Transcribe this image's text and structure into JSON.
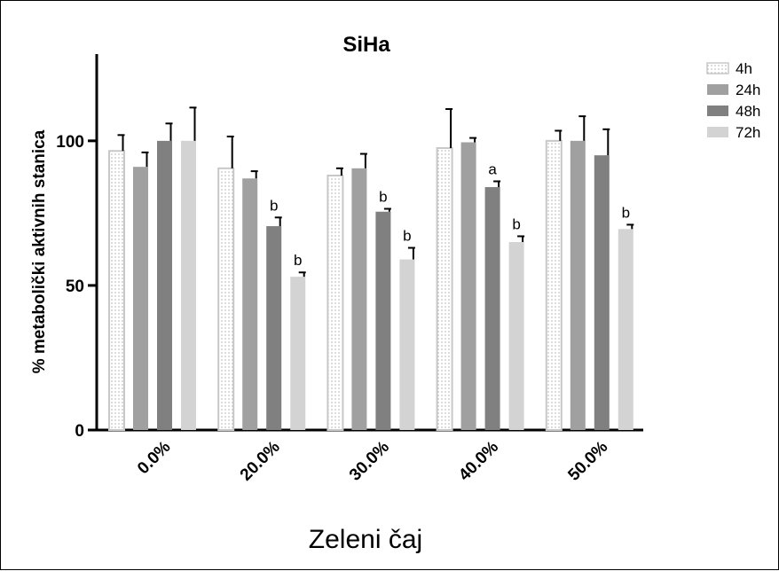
{
  "chart_data": {
    "type": "bar",
    "title": "SiHa",
    "xlabel": "Zeleni čaj",
    "ylabel": "% metabolički aktivnih stanica",
    "categories": [
      "0.0%",
      "20.0%",
      "30.0%",
      "40.0%",
      "50.0%"
    ],
    "ylim": [
      0,
      130
    ],
    "yticks": [
      "0",
      "50",
      "100"
    ],
    "ytick_values": [
      0,
      50,
      100
    ],
    "legend_position": "top-right",
    "grid": false,
    "series": [
      {
        "name": "4h",
        "color": "#ffffff",
        "pattern": "dots",
        "values": [
          96.5,
          90.5,
          88,
          97.5,
          100
        ],
        "errors": [
          5.5,
          11,
          2.5,
          13.5,
          3.5
        ],
        "labels": [
          "",
          "",
          "",
          "",
          ""
        ]
      },
      {
        "name": "24h",
        "color": "#a0a0a0",
        "pattern": "solid",
        "values": [
          91,
          87,
          90.5,
          99.5,
          100
        ],
        "errors": [
          5,
          2.5,
          5,
          1.5,
          8.5
        ],
        "labels": [
          "",
          "",
          "",
          "",
          ""
        ]
      },
      {
        "name": "48h",
        "color": "#808080",
        "pattern": "solid",
        "values": [
          100,
          70.5,
          75.5,
          84,
          95
        ],
        "errors": [
          6,
          3,
          1,
          2,
          9
        ],
        "labels": [
          "",
          "b",
          "b",
          "a",
          ""
        ]
      },
      {
        "name": "72h",
        "color": "#d3d3d3",
        "pattern": "solid",
        "values": [
          100,
          53,
          59,
          65,
          69.5
        ],
        "errors": [
          11.5,
          1.5,
          4,
          2,
          1.5
        ],
        "labels": [
          "",
          "b",
          "b",
          "b",
          "b"
        ]
      }
    ]
  }
}
